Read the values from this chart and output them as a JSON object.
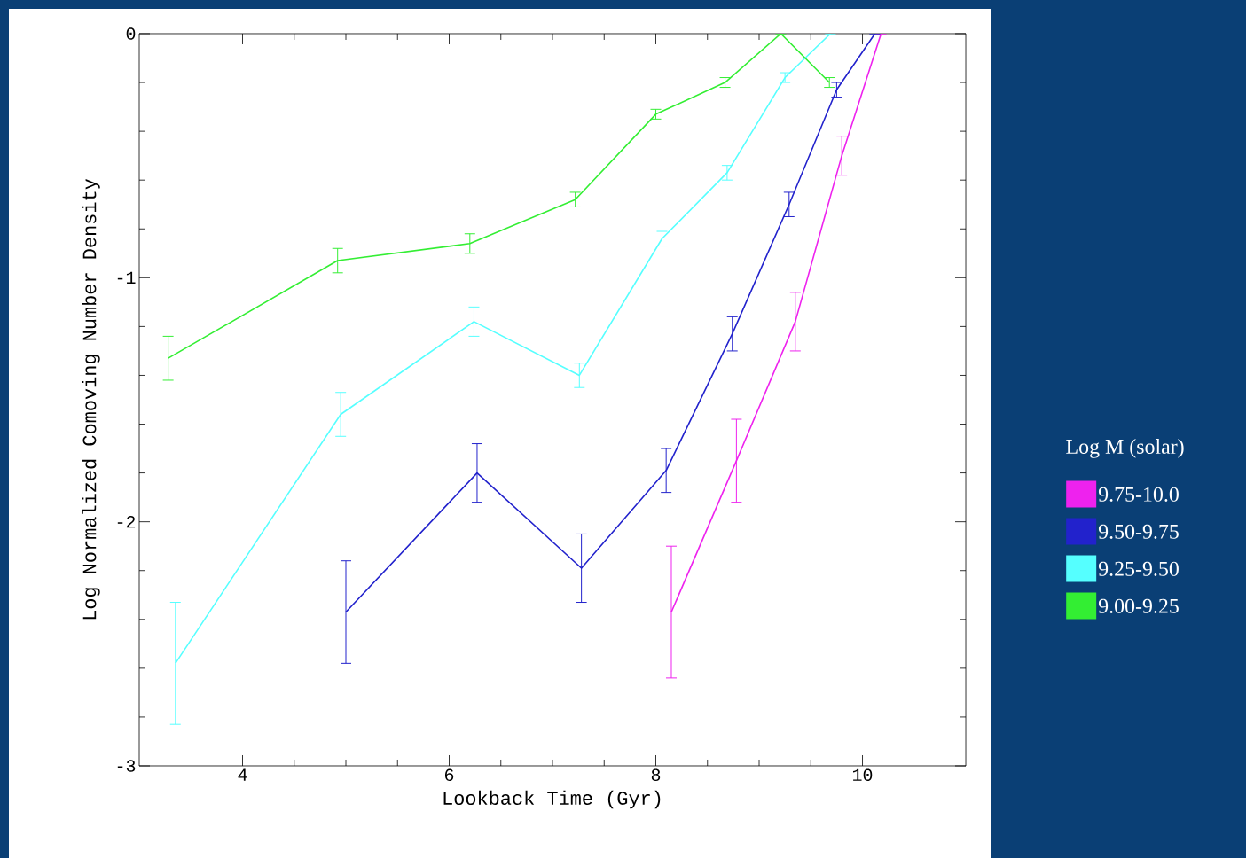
{
  "chart_data": {
    "type": "line",
    "xlabel": "Lookback Time (Gyr)",
    "ylabel": "Log Normalized Comoving Number Density",
    "legend_title": "Log M (solar)",
    "xlim": [
      3,
      11
    ],
    "ylim": [
      -3,
      0
    ],
    "xticks": [
      4,
      6,
      8,
      10
    ],
    "yticks": [
      -3,
      -2,
      -1,
      0
    ],
    "grid": false,
    "legend": "right",
    "marker": "none",
    "line_style": "solid",
    "series": [
      {
        "name": "9.75-10.0",
        "color": "#ee22ee",
        "x": [
          8.15,
          8.78,
          9.35,
          9.8,
          10.18
        ],
        "values": [
          -2.37,
          -1.75,
          -1.18,
          -0.5,
          0
        ],
        "errors": [
          0.27,
          0.17,
          0.12,
          0.08,
          null
        ]
      },
      {
        "name": "9.50-9.75",
        "color": "#2222cc",
        "x": [
          5.0,
          6.27,
          7.28,
          8.1,
          8.74,
          9.29,
          9.75,
          10.12
        ],
        "values": [
          -2.37,
          -1.8,
          -2.19,
          -1.79,
          -1.23,
          -0.7,
          -0.23,
          0
        ],
        "errors": [
          0.21,
          0.12,
          0.14,
          0.09,
          0.07,
          0.05,
          0.03,
          null
        ]
      },
      {
        "name": "9.25-9.50",
        "color": "#55ffff",
        "x": [
          3.35,
          4.95,
          6.24,
          7.26,
          8.06,
          8.69,
          9.25,
          9.69
        ],
        "values": [
          -2.58,
          -1.56,
          -1.18,
          -1.4,
          -0.84,
          -0.57,
          -0.18,
          0
        ],
        "errors": [
          0.25,
          0.09,
          0.06,
          0.05,
          0.03,
          0.03,
          0.02,
          null
        ]
      },
      {
        "name": "9.00-9.25",
        "color": "#33ee33",
        "x": [
          3.28,
          4.92,
          6.2,
          7.22,
          8.0,
          8.67,
          9.21,
          9.68
        ],
        "values": [
          -1.33,
          -0.93,
          -0.86,
          -0.68,
          -0.33,
          -0.2,
          0,
          -0.2
        ],
        "errors": [
          0.09,
          0.05,
          0.04,
          0.03,
          0.02,
          0.02,
          null,
          0.02
        ]
      }
    ]
  }
}
